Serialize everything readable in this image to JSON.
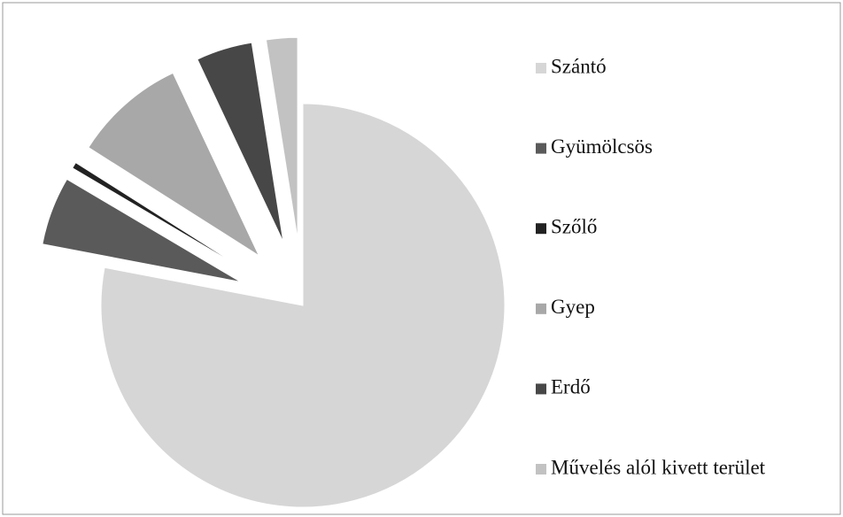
{
  "chart_data": {
    "type": "pie",
    "categories": [
      "Szántó",
      "Gyümölcsös",
      "Szőlő",
      "Gyep",
      "Erdő",
      "Művelés alól kivett terület"
    ],
    "values": [
      78,
      5.5,
      0.5,
      9,
      4.5,
      2.5
    ],
    "colors": [
      "#d6d6d6",
      "#5a5a5a",
      "#222222",
      "#a8a8a8",
      "#474747",
      "#c2c2c2"
    ],
    "legend": "right"
  }
}
